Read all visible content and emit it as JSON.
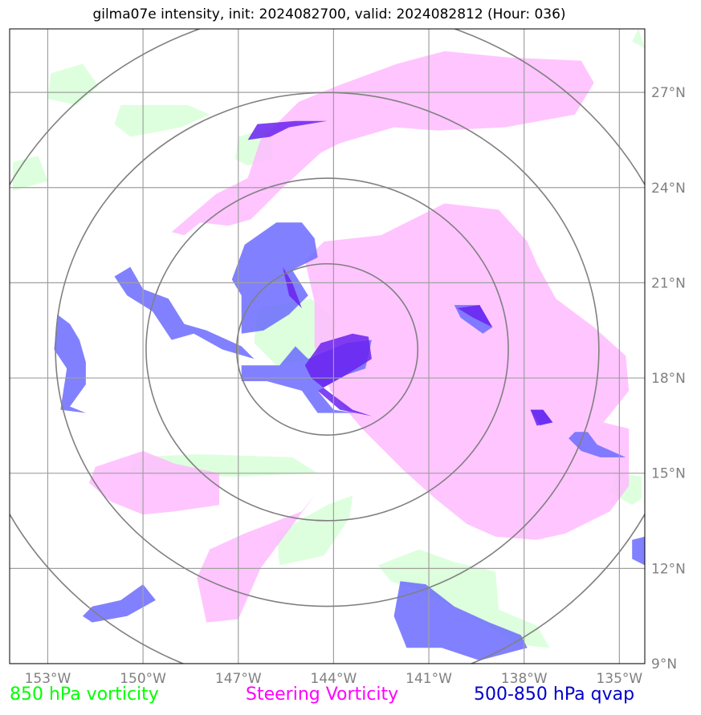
{
  "title": "gilma07e intensity, init: 2024082700, valid: 2024082812 (Hour: 036)",
  "legend": {
    "vort850": "850 hPa vorticity",
    "steering": "Steering Vorticity",
    "qvap": "500-850 hPa qvap"
  },
  "colors": {
    "vort850": "#00ff00",
    "steering": "#ff00ff",
    "qvap": "#0000cc",
    "vort850_fill": "#ddffdd",
    "steering_fill": "#ffbbff",
    "qvap_fill": "#6b6bff",
    "qvap_dark": "#6a22ee",
    "grid": "#a0a0a0",
    "rings": "#808080"
  },
  "chart_data": {
    "type": "map",
    "xlim": [
      -154.2,
      -134.2
    ],
    "ylim": [
      9,
      29
    ],
    "grid": true,
    "lon_ticks": [
      -153,
      -150,
      -147,
      -144,
      -141,
      -138,
      -135
    ],
    "lat_ticks": [
      9,
      12,
      15,
      18,
      21,
      24,
      27
    ],
    "lon_labels": [
      "153°W",
      "150°W",
      "147°W",
      "144°W",
      "141°W",
      "138°W",
      "135°W"
    ],
    "lat_labels": [
      "9°N",
      "12°N",
      "15°N",
      "18°N",
      "21°N",
      "24°N",
      "27°N"
    ],
    "storm_center": {
      "lon": -144.2,
      "lat": 18.9
    },
    "range_rings_km": [
      300,
      600,
      900,
      1200
    ],
    "fields": {
      "vort850": [
        [
          [
            -152.9,
            27.6
          ],
          [
            -151.9,
            27.9
          ],
          [
            -151.4,
            27.2
          ],
          [
            -152.1,
            26.6
          ],
          [
            -153.0,
            26.8
          ]
        ],
        [
          [
            -150.7,
            26.6
          ],
          [
            -148.6,
            26.6
          ],
          [
            -147.9,
            26.3
          ],
          [
            -148.8,
            25.9
          ],
          [
            -150.4,
            25.6
          ],
          [
            -150.9,
            26.0
          ]
        ],
        [
          [
            -147.0,
            25.6
          ],
          [
            -146.0,
            25.9
          ],
          [
            -145.9,
            24.9
          ],
          [
            -146.7,
            24.7
          ],
          [
            -147.1,
            24.9
          ]
        ],
        [
          [
            -154.1,
            24.8
          ],
          [
            -153.3,
            25.0
          ],
          [
            -153.0,
            24.2
          ],
          [
            -154.1,
            23.9
          ]
        ],
        [
          [
            -146.4,
            20.2
          ],
          [
            -144.7,
            20.5
          ],
          [
            -143.9,
            19.8
          ],
          [
            -144.1,
            18.9
          ],
          [
            -145.0,
            18.5
          ],
          [
            -145.8,
            18.4
          ],
          [
            -146.5,
            19.1
          ]
        ],
        [
          [
            -150.3,
            15.5
          ],
          [
            -148.3,
            15.6
          ],
          [
            -145.3,
            15.5
          ],
          [
            -144.5,
            15.0
          ],
          [
            -146.9,
            14.9
          ],
          [
            -149.0,
            14.9
          ],
          [
            -150.4,
            15.0
          ]
        ],
        [
          [
            -145.8,
            13.1
          ],
          [
            -144.2,
            14.0
          ],
          [
            -143.4,
            14.3
          ],
          [
            -143.5,
            13.6
          ],
          [
            -144.3,
            12.4
          ],
          [
            -145.7,
            12.1
          ]
        ],
        [
          [
            -142.6,
            12.1
          ],
          [
            -141.3,
            12.6
          ],
          [
            -140.2,
            12.2
          ],
          [
            -138.9,
            11.9
          ],
          [
            -138.8,
            10.7
          ],
          [
            -137.6,
            10.2
          ],
          [
            -137.2,
            9.5
          ],
          [
            -138.2,
            9.6
          ],
          [
            -140.2,
            10.8
          ],
          [
            -141.6,
            11.4
          ],
          [
            -142.2,
            11.6
          ]
        ],
        [
          [
            -134.3,
            14.9
          ],
          [
            -135.1,
            15.0
          ],
          [
            -135.3,
            14.4
          ],
          [
            -134.6,
            14.0
          ],
          [
            -134.3,
            14.2
          ]
        ],
        [
          [
            -134.4,
            29.0
          ],
          [
            -134.6,
            28.6
          ],
          [
            -134.2,
            28.4
          ]
        ]
      ],
      "steering": [
        [
          [
            -142.0,
            27.9
          ],
          [
            -140.5,
            28.3
          ],
          [
            -138.5,
            28.1
          ],
          [
            -136.2,
            28.0
          ],
          [
            -135.8,
            27.3
          ],
          [
            -136.4,
            26.3
          ],
          [
            -138.6,
            25.9
          ],
          [
            -140.7,
            25.8
          ],
          [
            -142.1,
            25.9
          ],
          [
            -143.8,
            25.4
          ],
          [
            -144.4,
            25.1
          ],
          [
            -145.6,
            24.0
          ],
          [
            -146.6,
            23.0
          ],
          [
            -147.3,
            22.8
          ],
          [
            -148.2,
            22.9
          ],
          [
            -148.7,
            22.5
          ],
          [
            -149.1,
            22.6
          ],
          [
            -147.7,
            23.8
          ],
          [
            -146.7,
            24.3
          ],
          [
            -146.3,
            25.5
          ],
          [
            -145.1,
            26.7
          ],
          [
            -143.9,
            27.2
          ]
        ],
        [
          [
            -144.3,
            22.3
          ],
          [
            -142.5,
            22.5
          ],
          [
            -140.5,
            23.5
          ],
          [
            -138.8,
            23.3
          ],
          [
            -137.9,
            22.3
          ],
          [
            -137.6,
            21.6
          ],
          [
            -137.0,
            20.5
          ],
          [
            -135.8,
            19.6
          ],
          [
            -134.8,
            18.7
          ],
          [
            -134.7,
            17.6
          ],
          [
            -135.5,
            16.6
          ],
          [
            -134.7,
            16.4
          ],
          [
            -134.7,
            14.6
          ],
          [
            -135.3,
            13.8
          ],
          [
            -136.7,
            13.1
          ],
          [
            -137.6,
            12.9
          ],
          [
            -138.9,
            13.0
          ],
          [
            -139.8,
            13.4
          ],
          [
            -140.8,
            14.2
          ],
          [
            -141.8,
            15.1
          ],
          [
            -143.1,
            16.4
          ],
          [
            -144.1,
            17.6
          ],
          [
            -144.6,
            19.0
          ],
          [
            -144.6,
            20.4
          ],
          [
            -144.9,
            21.7
          ]
        ],
        [
          [
            -151.5,
            15.2
          ],
          [
            -150.0,
            15.7
          ],
          [
            -149.0,
            15.3
          ],
          [
            -147.6,
            15.0
          ],
          [
            -147.6,
            14.0
          ],
          [
            -149.0,
            13.8
          ],
          [
            -150.0,
            13.7
          ],
          [
            -151.0,
            14.1
          ],
          [
            -151.7,
            14.7
          ]
        ],
        [
          [
            -146.8,
            13.1
          ],
          [
            -145.0,
            13.8
          ],
          [
            -144.6,
            14.3
          ],
          [
            -146.3,
            12.0
          ],
          [
            -147.0,
            10.4
          ],
          [
            -148.0,
            10.3
          ],
          [
            -148.3,
            11.7
          ],
          [
            -147.9,
            12.6
          ]
        ]
      ],
      "qvap": [
        [
          [
            -145.0,
            22.9
          ],
          [
            -144.6,
            22.4
          ],
          [
            -144.5,
            21.8
          ],
          [
            -145.3,
            21.4
          ],
          [
            -144.8,
            20.6
          ],
          [
            -145.4,
            20.0
          ],
          [
            -146.2,
            19.5
          ],
          [
            -146.9,
            19.4
          ],
          [
            -146.9,
            20.6
          ],
          [
            -147.2,
            21.1
          ],
          [
            -146.8,
            22.2
          ],
          [
            -145.8,
            22.9
          ]
        ],
        [
          [
            -150.4,
            21.5
          ],
          [
            -150.0,
            20.8
          ],
          [
            -149.2,
            20.5
          ],
          [
            -148.7,
            19.7
          ],
          [
            -148.0,
            19.5
          ],
          [
            -146.9,
            19.0
          ],
          [
            -146.5,
            18.6
          ],
          [
            -147.5,
            18.9
          ],
          [
            -148.4,
            19.4
          ],
          [
            -149.1,
            19.2
          ],
          [
            -149.7,
            20.1
          ],
          [
            -150.5,
            20.6
          ],
          [
            -150.9,
            21.2
          ]
        ],
        [
          [
            -152.7,
            20.0
          ],
          [
            -152.3,
            19.7
          ],
          [
            -152.0,
            19.2
          ],
          [
            -151.8,
            18.5
          ],
          [
            -151.8,
            17.8
          ],
          [
            -152.3,
            17.1
          ],
          [
            -151.8,
            16.9
          ],
          [
            -152.6,
            17.0
          ],
          [
            -152.4,
            18.3
          ],
          [
            -152.8,
            18.9
          ]
        ],
        [
          [
            -144.8,
            18.6
          ],
          [
            -143.6,
            19.1
          ],
          [
            -142.8,
            19.2
          ],
          [
            -143.0,
            18.3
          ],
          [
            -143.6,
            18.1
          ],
          [
            -144.5,
            17.6
          ],
          [
            -144.0,
            17.0
          ],
          [
            -143.3,
            16.9
          ],
          [
            -144.5,
            16.9
          ],
          [
            -145.0,
            17.6
          ],
          [
            -146.1,
            17.9
          ],
          [
            -146.9,
            17.9
          ],
          [
            -146.9,
            18.4
          ],
          [
            -145.7,
            18.4
          ],
          [
            -145.2,
            19.0
          ]
        ],
        [
          [
            -140.2,
            20.3
          ],
          [
            -139.4,
            20.3
          ],
          [
            -139.0,
            19.6
          ],
          [
            -139.3,
            19.4
          ],
          [
            -140.0,
            19.9
          ]
        ],
        [
          [
            -136.4,
            16.3
          ],
          [
            -136.0,
            16.3
          ],
          [
            -135.7,
            15.9
          ],
          [
            -134.8,
            15.5
          ],
          [
            -135.6,
            15.5
          ],
          [
            -136.2,
            15.7
          ],
          [
            -136.6,
            16.1
          ]
        ],
        [
          [
            -141.9,
            11.6
          ],
          [
            -141.1,
            11.5
          ],
          [
            -140.2,
            10.8
          ],
          [
            -139.1,
            10.3
          ],
          [
            -138.1,
            9.9
          ],
          [
            -137.9,
            9.5
          ],
          [
            -139.4,
            9.1
          ],
          [
            -140.6,
            9.5
          ],
          [
            -141.7,
            9.5
          ],
          [
            -142.1,
            10.5
          ]
        ],
        [
          [
            -151.6,
            10.8
          ],
          [
            -150.7,
            11.0
          ],
          [
            -150.0,
            11.5
          ],
          [
            -149.6,
            11.0
          ],
          [
            -150.5,
            10.5
          ],
          [
            -151.6,
            10.3
          ],
          [
            -151.9,
            10.5
          ]
        ],
        [
          [
            -134.2,
            13.0
          ],
          [
            -134.6,
            12.9
          ],
          [
            -134.6,
            12.3
          ],
          [
            -134.2,
            12.1
          ]
        ],
        [
          [
            -137.8,
            17.0
          ],
          [
            -137.4,
            17.0
          ],
          [
            -137.1,
            16.6
          ],
          [
            -137.5,
            16.5
          ]
        ]
      ],
      "qvap_dark": [
        [
          [
            -144.4,
            19.1
          ],
          [
            -143.4,
            19.4
          ],
          [
            -142.9,
            19.3
          ],
          [
            -142.8,
            18.6
          ],
          [
            -143.6,
            18.1
          ],
          [
            -144.5,
            17.6
          ],
          [
            -143.8,
            17.0
          ],
          [
            -142.8,
            16.8
          ],
          [
            -143.4,
            17.0
          ],
          [
            -144.2,
            17.6
          ],
          [
            -144.7,
            18.0
          ],
          [
            -144.9,
            18.4
          ]
        ],
        [
          [
            -146.4,
            26.0
          ],
          [
            -145.2,
            26.1
          ],
          [
            -144.7,
            26.1
          ],
          [
            -144.2,
            26.1
          ],
          [
            -145.4,
            25.9
          ],
          [
            -146.0,
            25.6
          ],
          [
            -146.7,
            25.5
          ]
        ],
        [
          [
            -140.1,
            20.2
          ],
          [
            -139.4,
            20.3
          ],
          [
            -139.0,
            19.6
          ],
          [
            -139.6,
            19.9
          ]
        ],
        [
          [
            -137.8,
            17.0
          ],
          [
            -137.4,
            17.0
          ],
          [
            -137.1,
            16.6
          ],
          [
            -137.6,
            16.5
          ]
        ],
        [
          [
            -145.6,
            21.5
          ],
          [
            -145.3,
            21.0
          ],
          [
            -145.0,
            20.2
          ],
          [
            -145.4,
            20.6
          ],
          [
            -145.6,
            21.5
          ]
        ]
      ]
    }
  }
}
